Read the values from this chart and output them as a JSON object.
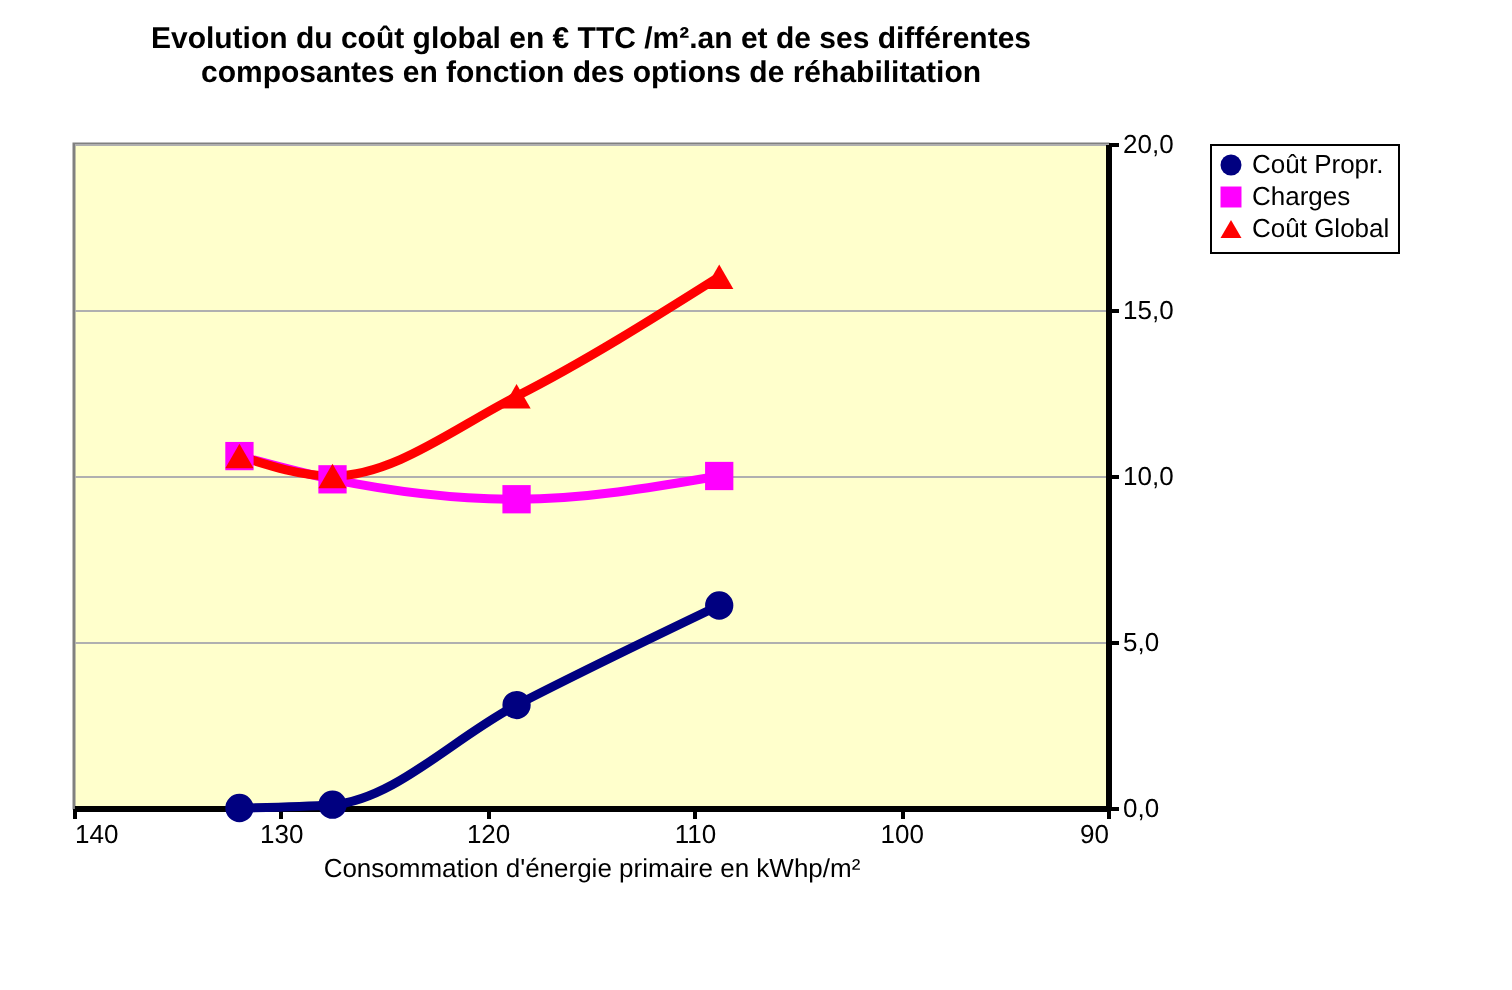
{
  "chart_data": {
    "type": "line",
    "title": "Evolution du coût global en € TTC /m².an et de ses différentes\ncomposantes en fonction des options de réhabilitation",
    "xlabel": "Consommation d'énergie primaire en kWhp/m²",
    "x": [
      132,
      127.5,
      118.6,
      108.8
    ],
    "series": [
      {
        "name": "Coût Propr.",
        "color": "#000080",
        "marker": "circle",
        "values": [
          0.0,
          0.1,
          3.1,
          6.1
        ]
      },
      {
        "name": "Charges",
        "color": "#ff00ff",
        "marker": "square",
        "values": [
          10.6,
          9.9,
          9.3,
          10.0
        ]
      },
      {
        "name": "Coût Global",
        "color": "#ff0000",
        "marker": "triangle",
        "values": [
          10.6,
          10.0,
          12.4,
          16.0
        ]
      }
    ],
    "xlim": [
      140,
      90
    ],
    "xticks": [
      140,
      130,
      120,
      110,
      100,
      90
    ],
    "ylim": [
      0,
      20
    ],
    "yticks": [
      {
        "value": 0,
        "label": "0,0"
      },
      {
        "value": 5,
        "label": "5,0"
      },
      {
        "value": 10,
        "label": "10,0"
      },
      {
        "value": 15,
        "label": "15,0"
      },
      {
        "value": 20,
        "label": "20,0"
      }
    ],
    "grid": "y",
    "legend": "right",
    "line_style": "solid"
  }
}
